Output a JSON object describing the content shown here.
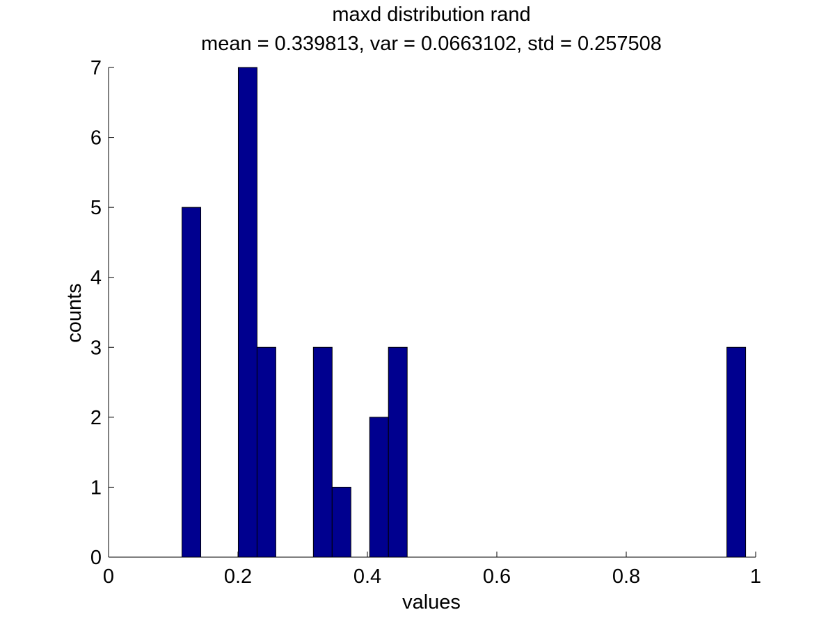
{
  "chart_data": {
    "type": "bar",
    "title": "maxd distribution rand",
    "subtitle": "mean = 0.339813, var = 0.0663102, std = 0.257508",
    "xlabel": "values",
    "ylabel": "counts",
    "xlim": [
      0,
      1
    ],
    "ylim": [
      0,
      7
    ],
    "x_ticks": [
      "0",
      "0.2",
      "0.4",
      "0.6",
      "0.8",
      "1"
    ],
    "y_ticks": [
      "0",
      "1",
      "2",
      "3",
      "4",
      "5",
      "6",
      "7"
    ],
    "bin_width": 0.029,
    "bins": [
      {
        "center": 0.128,
        "count": 5
      },
      {
        "center": 0.215,
        "count": 7
      },
      {
        "center": 0.244,
        "count": 3
      },
      {
        "center": 0.331,
        "count": 3
      },
      {
        "center": 0.36,
        "count": 1
      },
      {
        "center": 0.418,
        "count": 2
      },
      {
        "center": 0.447,
        "count": 3
      },
      {
        "center": 0.97,
        "count": 3
      }
    ],
    "bar_color": "#00008F",
    "grid": false,
    "legend": "none"
  }
}
